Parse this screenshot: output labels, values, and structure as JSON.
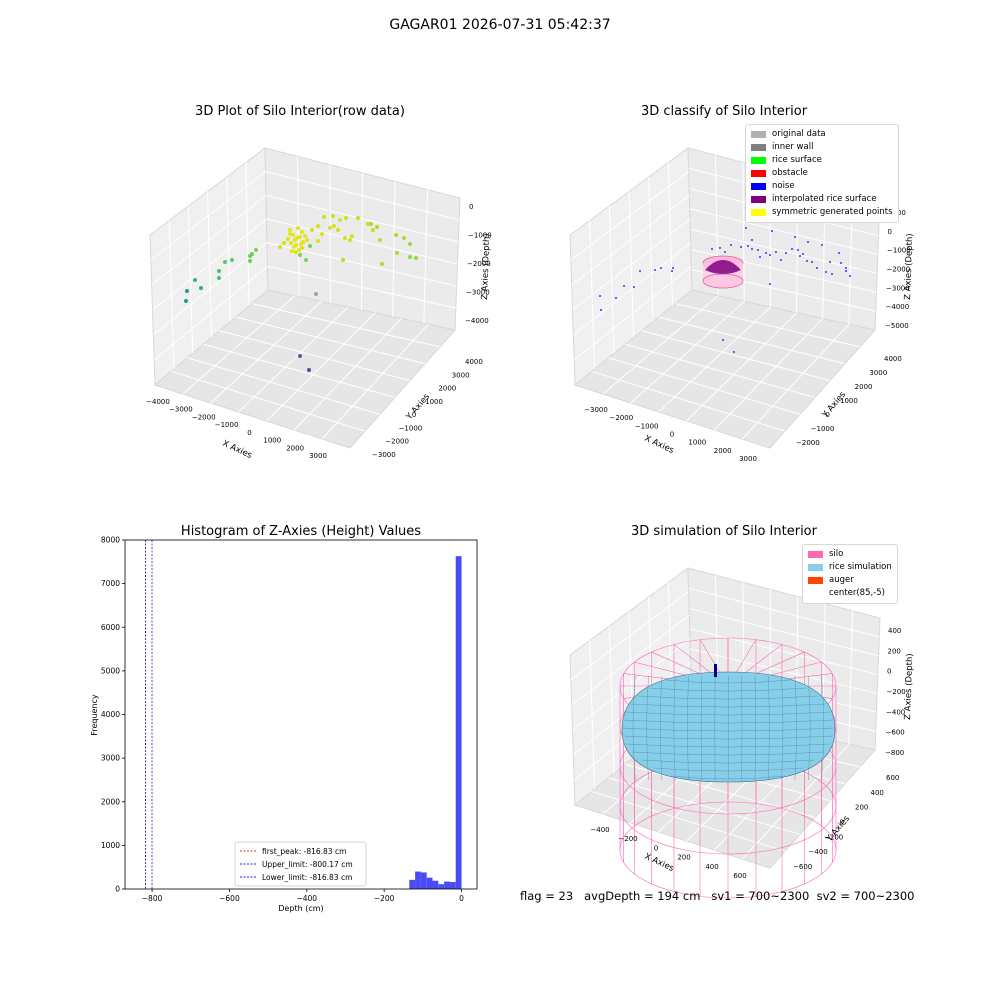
{
  "figure": {
    "suptitle": "GAGAR01 2026-07-31 05:42:37",
    "footer": "flag = 23   avgDepth = 194 cm   sv1 = 700~2300  sv2 = 700~2300"
  },
  "chart_data": [
    {
      "type": "scatter",
      "projection": "3d",
      "title": "3D Plot of Silo Interior(row data)",
      "xlabel": "X Axies",
      "ylabel": "Y Axies",
      "zlabel": "Z Axies (Depth)",
      "x_ticks": [
        "−4000",
        "−3000",
        "−2000",
        "−1000",
        "0",
        "1000",
        "2000",
        "3000"
      ],
      "y_ticks": [
        "−3000",
        "−2000",
        "−1000",
        "0",
        "1000",
        "2000",
        "3000",
        "4000"
      ],
      "z_ticks": [
        "0",
        "−1000",
        "−2000",
        "−3000",
        "−4000"
      ],
      "colormap": "viridis (by depth)",
      "grid": true
    },
    {
      "type": "scatter",
      "projection": "3d",
      "title": "3D classify of Silo Interior",
      "xlabel": "X Axies",
      "ylabel": "Y Axies",
      "zlabel": "Z Axies (Depth)",
      "x_ticks": [
        "−3000",
        "−2000",
        "−1000",
        "0",
        "1000",
        "2000",
        "3000"
      ],
      "y_ticks": [
        "−2000",
        "−1000",
        "0",
        "1000",
        "2000",
        "3000",
        "4000"
      ],
      "z_ticks": [
        "1000",
        "0",
        "−1000",
        "−2000",
        "−3000",
        "−4000",
        "−5000"
      ],
      "legend": {
        "placement": "top-right",
        "items": [
          {
            "label": "original data",
            "color": "#b0b0b0"
          },
          {
            "label": "inner wall",
            "color": "#808080"
          },
          {
            "label": "rice surface",
            "color": "#00ff00"
          },
          {
            "label": "obstacle",
            "color": "#ff0000"
          },
          {
            "label": "noise",
            "color": "#0000ff"
          },
          {
            "label": "interpolated rice surface",
            "color": "#800080"
          },
          {
            "label": "symmetric generated points",
            "color": "#ffff00"
          }
        ]
      },
      "grid": true
    },
    {
      "type": "histogram",
      "title": "Histogram of Z-Axies (Height) Values",
      "xlabel": "Depth (cm)",
      "ylabel": "Frequency",
      "xlim": [
        -870,
        40
      ],
      "ylim": [
        0,
        8000
      ],
      "x_ticks": [
        -800,
        -600,
        -400,
        -200,
        0
      ],
      "x_tick_labels": [
        "−800",
        "−600",
        "−400",
        "−200",
        "0"
      ],
      "y_ticks": [
        0,
        1000,
        2000,
        3000,
        4000,
        5000,
        6000,
        7000,
        8000
      ],
      "y_tick_labels": [
        "0",
        "1000",
        "2000",
        "3000",
        "4000",
        "5000",
        "6000",
        "7000",
        "8000"
      ],
      "bar_color": "#4b4bf5",
      "bins": [
        {
          "x0": -135,
          "x1": -120,
          "count": 210
        },
        {
          "x0": -120,
          "x1": -105,
          "count": 400
        },
        {
          "x0": -105,
          "x1": -90,
          "count": 380
        },
        {
          "x0": -90,
          "x1": -75,
          "count": 260
        },
        {
          "x0": -75,
          "x1": -60,
          "count": 190
        },
        {
          "x0": -60,
          "x1": -45,
          "count": 110
        },
        {
          "x0": -45,
          "x1": -30,
          "count": 170
        },
        {
          "x0": -30,
          "x1": -15,
          "count": 160
        },
        {
          "x0": -15,
          "x1": 0,
          "count": 7630
        }
      ],
      "vlines": [
        {
          "x": -816.83,
          "label": "first_peak: -816.83 cm",
          "color": "#cc3333"
        },
        {
          "x": -800.17,
          "label": "Upper_limit: -800.17 cm",
          "color": "#2222cc"
        },
        {
          "x": -816.83,
          "label": "Lower_limit: -816.83 cm",
          "color": "#2222cc"
        }
      ],
      "legend_placement": "lower-center"
    },
    {
      "type": "surface",
      "projection": "3d",
      "title": "3D simulation of Silo Interior",
      "xlabel": "X Axies",
      "ylabel": "Y Axies",
      "zlabel": "Z Axies (Depth)",
      "x_ticks": [
        "−400",
        "−200",
        "0",
        "200",
        "400",
        "600"
      ],
      "y_ticks": [
        "−600",
        "−400",
        "−200",
        "0",
        "200",
        "400",
        "600"
      ],
      "z_ticks": [
        "400",
        "200",
        "0",
        "−200",
        "−400",
        "−600",
        "−800"
      ],
      "legend": {
        "placement": "top-right",
        "items": [
          {
            "label": "silo",
            "color": "#ff69b4"
          },
          {
            "label": "rice simulation",
            "color": "#87ceeb"
          },
          {
            "label": "auger",
            "color": "#ff4500"
          },
          {
            "label": "center(85,-5)",
            "color": ""
          }
        ]
      },
      "grid": true
    }
  ]
}
